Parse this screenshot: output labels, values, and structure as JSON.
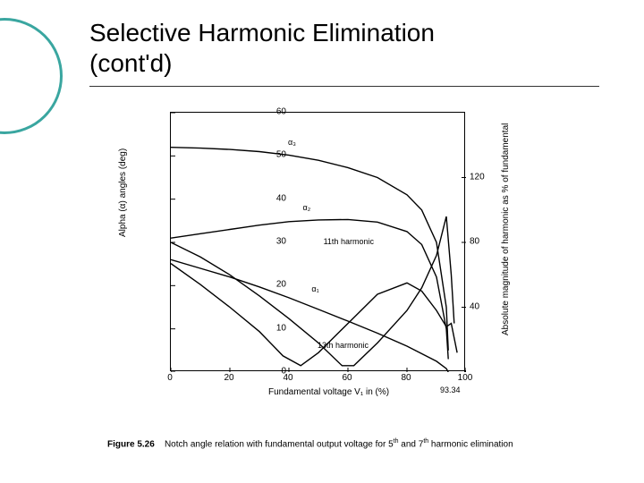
{
  "title_line1": "Selective Harmonic Elimination",
  "title_line2": "(cont'd)",
  "decor_circle_color": "#3aa6a0",
  "chart": {
    "type": "line",
    "xlabel": "Fundamental voltage V₁ in (%)",
    "ylabel_left": "Alpha (α) angles (deg)",
    "ylabel_right": "Absolute magnitude of harmonic as % of fundamental",
    "xlim": [
      0,
      100
    ],
    "ylim_left": [
      0,
      60
    ],
    "ylim_right": [
      0,
      160
    ],
    "xticks": [
      0,
      20,
      40,
      60,
      80,
      100
    ],
    "yticks_left": [
      0,
      10,
      20,
      30,
      40,
      50,
      60
    ],
    "yticks_right_shown": [
      40,
      80,
      120
    ],
    "x_annotation_9334": "93.34",
    "curve_color": "#000000",
    "background_color": "#ffffff",
    "plot_border_color": "#000000",
    "label_fontsize": 10,
    "tick_fontsize": 10,
    "annot_fontsize": 9,
    "line_width": 1.4,
    "series": {
      "alpha3": {
        "label": "α₃",
        "points_xy": [
          [
            0,
            52
          ],
          [
            10,
            51.8
          ],
          [
            20,
            51.5
          ],
          [
            30,
            51
          ],
          [
            40,
            50.2
          ],
          [
            50,
            49
          ],
          [
            60,
            47.3
          ],
          [
            70,
            45
          ],
          [
            80,
            41
          ],
          [
            85,
            37.5
          ],
          [
            90,
            30
          ],
          [
            93.34,
            15
          ],
          [
            94,
            5
          ]
        ]
      },
      "alpha2": {
        "label": "α₂",
        "points_xy": [
          [
            0,
            31
          ],
          [
            10,
            32
          ],
          [
            20,
            33
          ],
          [
            30,
            34
          ],
          [
            40,
            34.8
          ],
          [
            50,
            35.2
          ],
          [
            60,
            35.3
          ],
          [
            70,
            34.7
          ],
          [
            80,
            32.5
          ],
          [
            85,
            29.5
          ],
          [
            90,
            22
          ],
          [
            93.34,
            10
          ],
          [
            94,
            3
          ]
        ]
      },
      "alpha1": {
        "label": "α₁",
        "points_xy": [
          [
            0,
            26
          ],
          [
            10,
            24
          ],
          [
            20,
            22
          ],
          [
            30,
            19.7
          ],
          [
            40,
            17.2
          ],
          [
            50,
            14.5
          ],
          [
            60,
            11.8
          ],
          [
            70,
            9
          ],
          [
            80,
            6
          ],
          [
            90,
            2.5
          ],
          [
            93.34,
            0.8
          ],
          [
            94,
            0
          ]
        ]
      },
      "h11": {
        "label": "11th harmonic",
        "points_right_xy": [
          [
            0,
            80
          ],
          [
            10,
            71
          ],
          [
            20,
            60
          ],
          [
            30,
            47
          ],
          [
            40,
            33
          ],
          [
            50,
            18
          ],
          [
            58,
            4
          ],
          [
            62,
            4
          ],
          [
            70,
            18
          ],
          [
            80,
            38
          ],
          [
            85,
            52
          ],
          [
            90,
            72
          ],
          [
            93.34,
            96
          ],
          [
            95,
            60
          ],
          [
            96,
            30
          ]
        ]
      },
      "h13": {
        "label": "13th harmonic",
        "points_right_xy": [
          [
            0,
            67
          ],
          [
            10,
            54
          ],
          [
            20,
            40
          ],
          [
            30,
            25
          ],
          [
            38,
            10
          ],
          [
            44,
            4
          ],
          [
            50,
            12
          ],
          [
            60,
            30
          ],
          [
            70,
            48
          ],
          [
            80,
            55
          ],
          [
            85,
            50
          ],
          [
            90,
            38
          ],
          [
            93.34,
            28
          ],
          [
            95,
            30
          ],
          [
            97,
            12
          ]
        ]
      }
    },
    "annotations": {
      "alpha3": {
        "x": 40,
        "y_left": 54
      },
      "alpha2": {
        "x": 45,
        "y_left": 39
      },
      "alpha1": {
        "x": 48,
        "y_left": 20
      },
      "h11": {
        "x": 52,
        "y_left": 31
      },
      "h13": {
        "x": 50,
        "y_left": 7
      }
    }
  },
  "caption": {
    "fignum": "Figure 5.26",
    "text_before": "Notch angle relation with fundamental output voltage for 5",
    "sup1": "th",
    "text_mid": " and 7",
    "sup2": "th",
    "text_after": " harmonic elimination"
  }
}
